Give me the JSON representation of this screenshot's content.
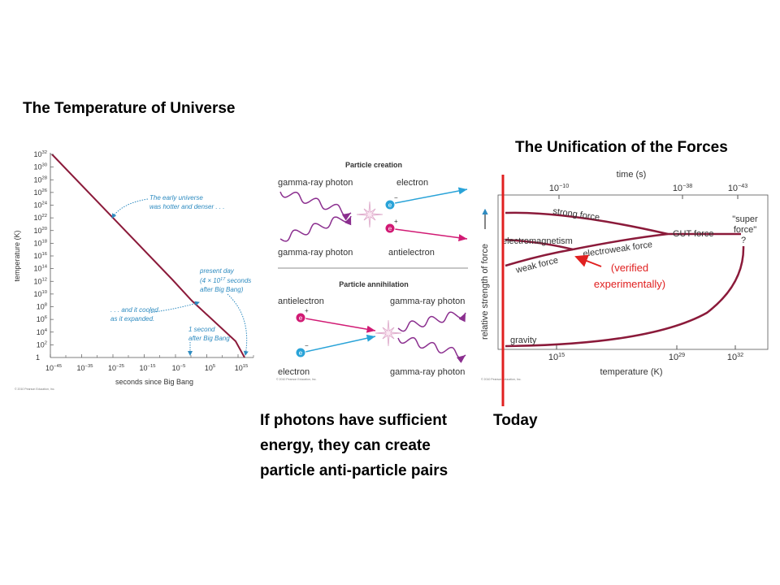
{
  "slide": {
    "temperature_title": "The Temperature of Universe",
    "unification_title": "The Unification of the Forces",
    "caption": [
      "If photons have sufficient",
      "energy, they can create",
      "particle anti-particle pairs"
    ],
    "today_label": "Today"
  },
  "temperature_figure": {
    "y_axis_title": "temperature (K)",
    "x_axis_title": "seconds since Big Bang",
    "power_base": "10",
    "y_origin_label": "1",
    "y_tick_exponents": [
      "2",
      "4",
      "6",
      "8",
      "10",
      "12",
      "14",
      "16",
      "18",
      "20",
      "22",
      "24",
      "26",
      "28",
      "30",
      "32"
    ],
    "x_tick_exponents": [
      "−45",
      "−35",
      "−25",
      "−15",
      "−5",
      "5",
      "15"
    ],
    "early_note": [
      "The early universe",
      "was hotter and denser . . ."
    ],
    "cooled_note": [
      ". . . and it cooled",
      "as it expanded."
    ],
    "present_note": {
      "line1": "present day",
      "prefix": "(4 × ",
      "exponent": "17",
      "suffix": " seconds",
      "line3": "after Big Bang)"
    },
    "second_note": [
      "1 second",
      "after Big Bang"
    ],
    "copyright": "© 2010 Pearson Education, Inc."
  },
  "particle_figure": {
    "creation": {
      "title": "Particle creation",
      "photon_top": "gamma-ray photon",
      "electron": "electron",
      "photon_bottom": "gamma-ray photon",
      "antielectron": "antielectron"
    },
    "annihilation": {
      "title": "Particle annihilation",
      "antielectron": "antielectron",
      "photon_top": "gamma-ray photon",
      "electron": "electron",
      "photon_bottom": "gamma-ray photon"
    },
    "particle_symbol": "e",
    "plus_sign": "+",
    "minus_sign": "−"
  },
  "forces_figure": {
    "time_axis_title": "time (s)",
    "time_exponents": [
      "−10",
      "−38",
      "−43"
    ],
    "temperature_axis_title": "temperature (K)",
    "temperature_exponents": [
      "15",
      "29",
      "32"
    ],
    "y_axis_title": "relative strength of force",
    "strong": "strong force",
    "electromagnetism": "electromagnetism",
    "weak": "weak force",
    "electroweak": "electroweak force",
    "gut": "GUT force",
    "super_force": [
      "\"super",
      "force\""
    ],
    "question": "?",
    "gravity": "gravity",
    "verified": [
      "(verified",
      "experimentally)"
    ]
  }
}
